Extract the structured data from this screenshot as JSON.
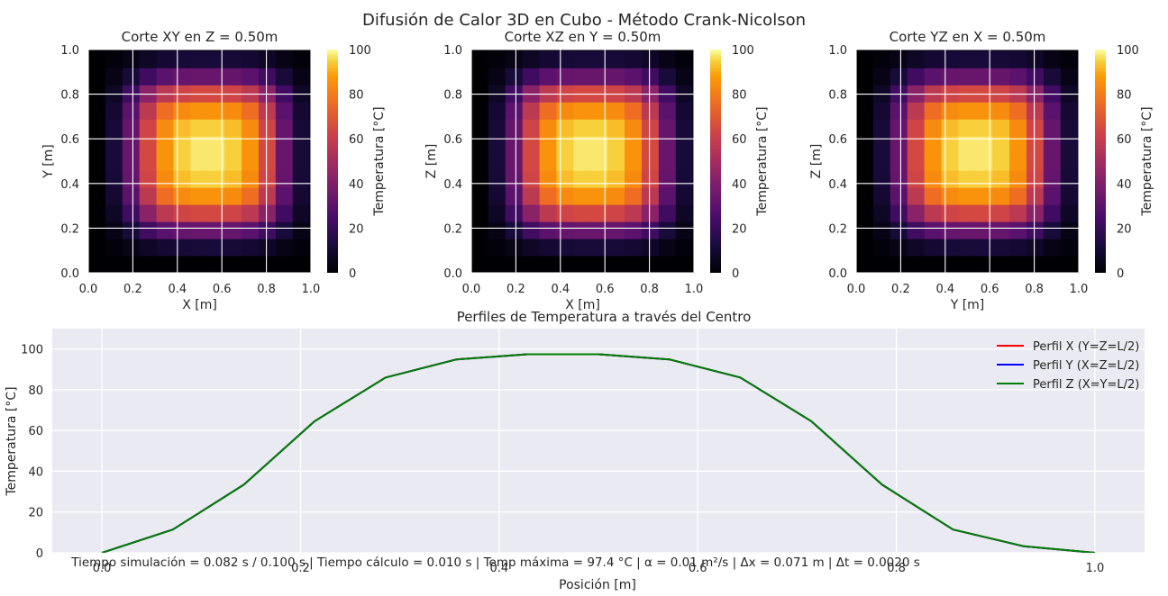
{
  "figure": {
    "suptitle": "Difusión de Calor 3D en Cubo - Método Crank-Nicolson",
    "footer": "Tiempo simulación = 0.082 s / 0.100 s | Tiempo cálculo = 0.010 s | Temp máxima = 97.4 °C | α = 0.01 m²/s | Δx = 0.071 m | Δt = 0.0020 s",
    "colormap": "inferno",
    "style_colors": {
      "axes_bg": "#EAEAF2",
      "grid": "#FFFFFF",
      "text": "#262626"
    }
  },
  "chart_data": [
    {
      "type": "heatmap",
      "title": "Corte XY en Z = 0.50m",
      "xlabel": "X [m]",
      "ylabel": "Y [m]",
      "colorbar_label": "Temperatura [°C]",
      "xlim": [
        0,
        1
      ],
      "ylim": [
        0,
        1
      ],
      "xticks": [
        "0.0",
        "0.2",
        "0.4",
        "0.6",
        "0.8",
        "1.0"
      ],
      "yticks": [
        "0.0",
        "0.2",
        "0.4",
        "0.6",
        "0.8",
        "1.0"
      ],
      "cbar_ticks": [
        0,
        20,
        40,
        60,
        80,
        100
      ],
      "vmin": 0,
      "vmax": 100,
      "grid_size": 15,
      "grid_extent": [
        0,
        1.071
      ],
      "profile": [
        0,
        11.4,
        33.4,
        64.6,
        86.0,
        94.9,
        97.4,
        97.4,
        94.9,
        86.0,
        64.6,
        33.4,
        11.4,
        3.2,
        0
      ],
      "peak": 97.4,
      "note": "values are product profile[i]*profile[j]/peak"
    },
    {
      "type": "heatmap",
      "title": "Corte XZ en Y = 0.50m",
      "xlabel": "X [m]",
      "ylabel": "Z [m]",
      "colorbar_label": "Temperatura [°C]",
      "xlim": [
        0,
        1
      ],
      "ylim": [
        0,
        1
      ],
      "xticks": [
        "0.0",
        "0.2",
        "0.4",
        "0.6",
        "0.8",
        "1.0"
      ],
      "yticks": [
        "0.0",
        "0.2",
        "0.4",
        "0.6",
        "0.8",
        "1.0"
      ],
      "cbar_ticks": [
        0,
        20,
        40,
        60,
        80,
        100
      ],
      "vmin": 0,
      "vmax": 100,
      "grid_size": 15,
      "grid_extent": [
        0,
        1.071
      ],
      "profile": [
        0,
        11.4,
        33.4,
        64.6,
        86.0,
        94.9,
        97.4,
        97.4,
        94.9,
        86.0,
        64.6,
        33.4,
        11.4,
        3.2,
        0
      ],
      "peak": 97.4
    },
    {
      "type": "heatmap",
      "title": "Corte YZ en X = 0.50m",
      "xlabel": "Y [m]",
      "ylabel": "Z [m]",
      "colorbar_label": "Temperatura [°C]",
      "xlim": [
        0,
        1
      ],
      "ylim": [
        0,
        1
      ],
      "xticks": [
        "0.0",
        "0.2",
        "0.4",
        "0.6",
        "0.8",
        "1.0"
      ],
      "yticks": [
        "0.0",
        "0.2",
        "0.4",
        "0.6",
        "0.8",
        "1.0"
      ],
      "cbar_ticks": [
        0,
        20,
        40,
        60,
        80,
        100
      ],
      "vmin": 0,
      "vmax": 100,
      "grid_size": 15,
      "grid_extent": [
        0,
        1.071
      ],
      "profile": [
        0,
        11.4,
        33.4,
        64.6,
        86.0,
        94.9,
        97.4,
        97.4,
        94.9,
        86.0,
        64.6,
        33.4,
        11.4,
        3.2,
        0
      ],
      "peak": 97.4
    },
    {
      "type": "line",
      "title": "Perfiles de Temperatura a través del Centro",
      "xlabel": "Posición [m]",
      "ylabel": "Temperatura [°C]",
      "xlim": [
        -0.05,
        1.05
      ],
      "ylim": [
        0,
        110
      ],
      "xticks": [
        "0.0",
        "0.2",
        "0.4",
        "0.6",
        "0.8",
        "1.0"
      ],
      "yticks": [
        "0",
        "20",
        "40",
        "60",
        "80",
        "100"
      ],
      "legend_position": "top-right",
      "grid": true,
      "x": [
        0,
        0.0714,
        0.1429,
        0.2143,
        0.2857,
        0.3571,
        0.4286,
        0.5,
        0.5714,
        0.6429,
        0.7143,
        0.7857,
        0.8571,
        0.9286,
        1.0
      ],
      "series": [
        {
          "name": "Perfil X (Y=Z=L/2)",
          "color": "#ff0000",
          "values": [
            0,
            11.4,
            33.4,
            64.6,
            86.0,
            94.9,
            97.4,
            97.4,
            94.9,
            86.0,
            64.6,
            33.4,
            11.4,
            3.2,
            0
          ]
        },
        {
          "name": "Perfil Y (X=Z=L/2)",
          "color": "#0000ff",
          "values": [
            0,
            11.4,
            33.4,
            64.6,
            86.0,
            94.9,
            97.4,
            97.4,
            94.9,
            86.0,
            64.6,
            33.4,
            11.4,
            3.2,
            0
          ]
        },
        {
          "name": "Perfil Z (X=Y=L/2)",
          "color": "#008000",
          "values": [
            0,
            11.4,
            33.4,
            64.6,
            86.0,
            94.9,
            97.4,
            97.4,
            94.9,
            86.0,
            64.6,
            33.4,
            11.4,
            3.2,
            0
          ]
        }
      ]
    }
  ]
}
